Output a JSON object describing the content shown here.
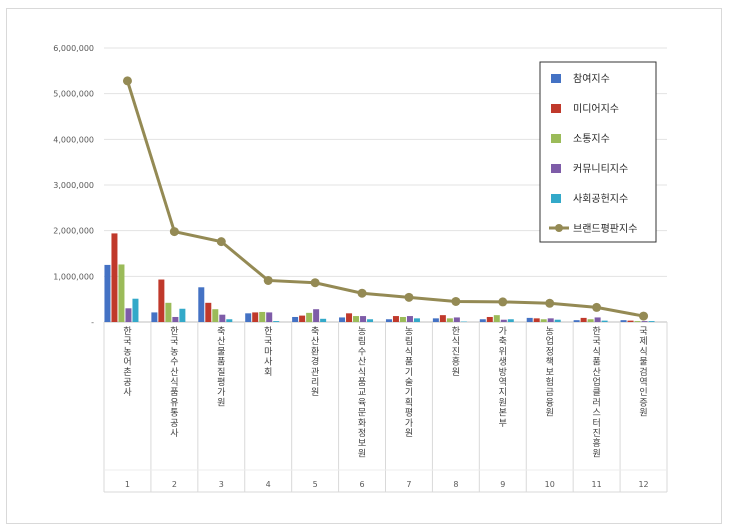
{
  "chart_data": {
    "type": "bar",
    "ylim": [
      0,
      6000000
    ],
    "yticks": [
      0,
      1000000,
      2000000,
      3000000,
      4000000,
      5000000,
      6000000
    ],
    "ytick_labels": [
      "-",
      "1,000,000",
      "2,000,000",
      "3,000,000",
      "4,000,000",
      "5,000,000",
      "6,000,000"
    ],
    "categories": [
      "한국농어촌공사",
      "한국농수산식품유통공사",
      "축산물품질평가원",
      "한국마사회",
      "축산환경관리원",
      "농림수산식품교육문화정보원",
      "농림식품기술기획평가원",
      "한식진흥원",
      "가축위생방역지원본부",
      "농업정책보험금융원",
      "한국식품산업클러스터진흥원",
      "국제식물검역인증원"
    ],
    "index_labels": [
      "1",
      "2",
      "3",
      "4",
      "5",
      "6",
      "7",
      "8",
      "9",
      "10",
      "11",
      "12"
    ],
    "series": [
      {
        "name": "참여지수",
        "color": "#4472c4",
        "values": [
          1250000,
          210000,
          760000,
          190000,
          110000,
          100000,
          60000,
          80000,
          60000,
          90000,
          40000,
          40000
        ]
      },
      {
        "name": "미디어지수",
        "color": "#c0392b",
        "values": [
          1940000,
          930000,
          420000,
          210000,
          140000,
          190000,
          130000,
          150000,
          110000,
          80000,
          90000,
          30000
        ]
      },
      {
        "name": "소통지수",
        "color": "#9bbb59",
        "values": [
          1260000,
          420000,
          280000,
          220000,
          200000,
          130000,
          110000,
          80000,
          150000,
          60000,
          60000,
          20000
        ]
      },
      {
        "name": "커뮤니티지수",
        "color": "#7e5ca8",
        "values": [
          300000,
          110000,
          160000,
          210000,
          280000,
          130000,
          130000,
          100000,
          50000,
          80000,
          100000,
          20000
        ]
      },
      {
        "name": "사회공헌지수",
        "color": "#33a9c9",
        "values": [
          510000,
          290000,
          60000,
          20000,
          70000,
          60000,
          80000,
          10000,
          60000,
          50000,
          30000,
          20000
        ]
      }
    ],
    "line_series": {
      "name": "브랜드평판지수",
      "color": "#948a54",
      "values": [
        5280000,
        1980000,
        1760000,
        910000,
        860000,
        630000,
        540000,
        450000,
        440000,
        410000,
        320000,
        130000
      ]
    },
    "grid": true,
    "legend_position": "top-right"
  }
}
